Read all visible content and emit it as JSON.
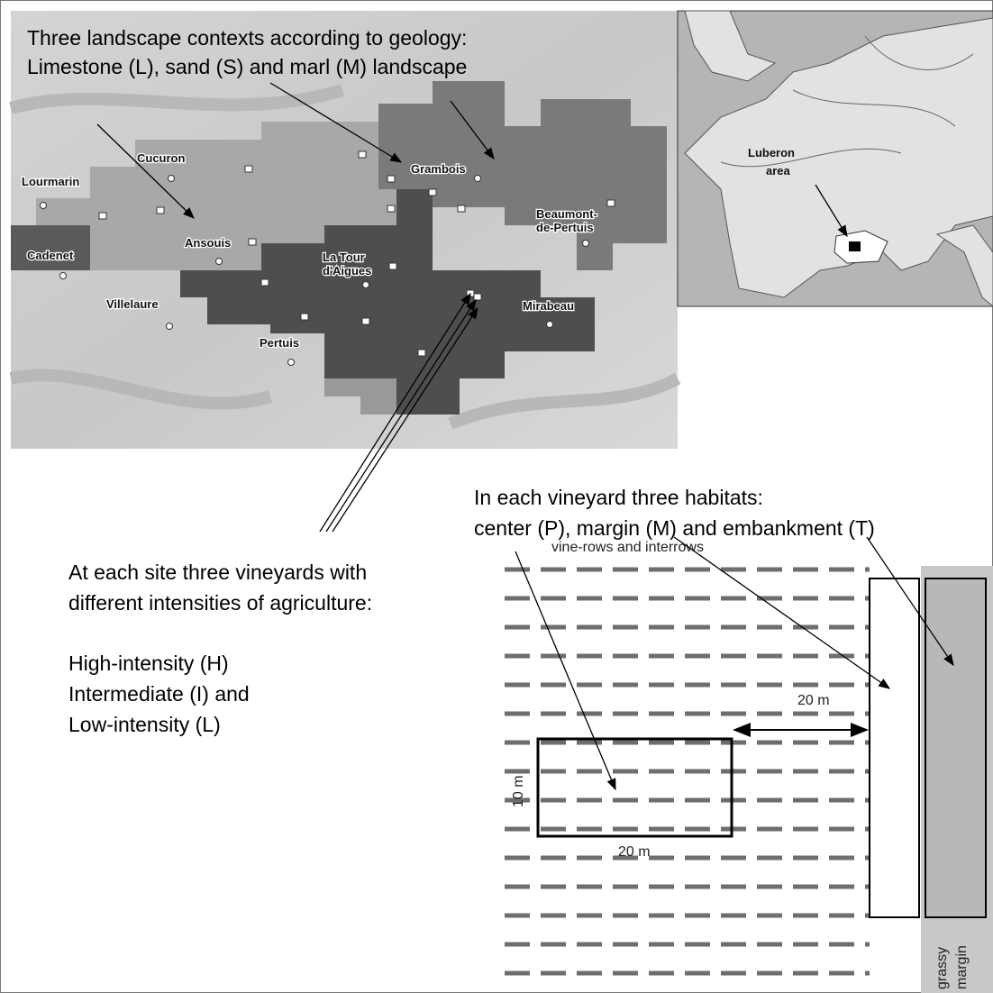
{
  "map": {
    "title": [
      "Three landscape contexts according to geology:",
      "Limestone (L), sand (S) and marl (M) landscape"
    ],
    "towns": [
      {
        "lines": [
          "Cucuron"
        ]
      },
      {
        "lines": [
          "Lourmarin"
        ]
      },
      {
        "lines": [
          "Cadenet"
        ]
      },
      {
        "lines": [
          "Ansouis"
        ]
      },
      {
        "lines": [
          "Villelaure"
        ]
      },
      {
        "lines": [
          "La Tour",
          "d'Aigues"
        ]
      },
      {
        "lines": [
          "Grambois"
        ]
      },
      {
        "lines": [
          "Beaumont-",
          "de-Pertuis"
        ]
      },
      {
        "lines": [
          "Mirabeau"
        ]
      },
      {
        "lines": [
          "Pertuis"
        ]
      }
    ]
  },
  "inset": {
    "label": [
      "Luberon",
      "area"
    ]
  },
  "habitats": {
    "title": [
      "In each vineyard three habitats:",
      "center (P), margin (M) and embankment (T)"
    ]
  },
  "sites": {
    "title": [
      "At each site three vineyards with",
      "different intensities of agriculture:"
    ],
    "levels": [
      "High-intensity (H)",
      "Intermediate (I) and",
      "Low-intensity (L)"
    ]
  },
  "diagram": {
    "rows_label": "vine-rows and interrows",
    "distance_label": "20 m",
    "box_height_label": "10 m",
    "box_width_label": "20 m",
    "grassy_margin": [
      "grassy",
      "margin"
    ]
  }
}
